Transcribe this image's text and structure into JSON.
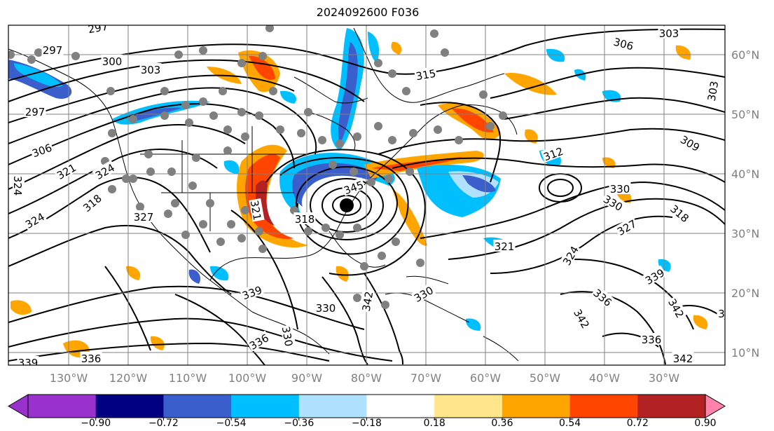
{
  "figure": {
    "title": "2024092600 F036"
  },
  "map": {
    "lat_labels": [
      "60°N",
      "50°N",
      "40°N",
      "30°N",
      "20°N",
      "10°N"
    ],
    "lon_labels": [
      "130°W",
      "120°W",
      "110°W",
      "100°W",
      "90°W",
      "80°W",
      "70°W",
      "60°W",
      "50°W",
      "40°W",
      "30°W"
    ],
    "contour_labels": [
      "297",
      "297",
      "300",
      "303",
      "306",
      "303",
      "315",
      "303",
      "309",
      "297",
      "306",
      "321",
      "324",
      "324",
      "312",
      "327",
      "318",
      "318",
      "321",
      "330",
      "330",
      "318",
      "327",
      "324",
      "321",
      "324",
      "336",
      "339",
      "345",
      "330",
      "342",
      "330",
      "339",
      "336",
      "342",
      "330",
      "342",
      "336",
      "339",
      "336",
      "342",
      "3"
    ],
    "colors": {
      "coast": "#000000",
      "grid": "#808080",
      "dot": "#808080"
    }
  },
  "colorbar": {
    "levels": [
      "−0.90",
      "−0.72",
      "−0.54",
      "−0.36",
      "−0.18",
      "0.18",
      "0.36",
      "0.54",
      "0.72",
      "0.90"
    ],
    "colors": [
      "#9932cc",
      "#000080",
      "#3a5fcd",
      "#00bfff",
      "#b0e2ff",
      "#ffffff",
      "#ffe68a",
      "#ffa500",
      "#ff4500",
      "#b22222",
      "#ff82ab"
    ]
  }
}
